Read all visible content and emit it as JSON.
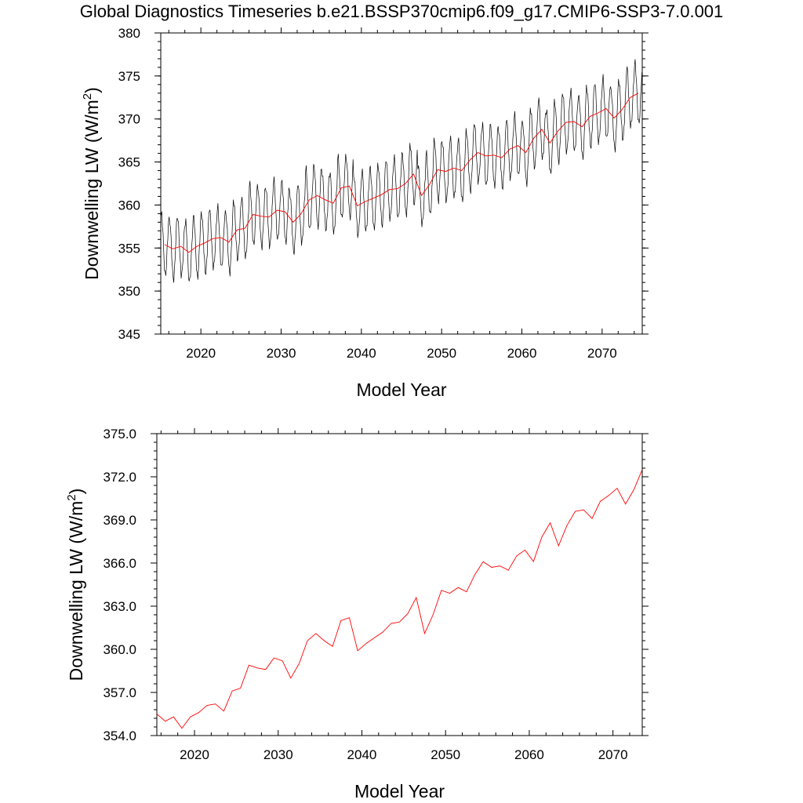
{
  "title": "Global Diagnostics Timeseries b.e21.BSSP370cmip6.f09_g17.CMIP6-SSP3-7.0.001",
  "colors": {
    "monthly": "#000000",
    "annual": "#ff0000"
  },
  "chart_data": [
    {
      "type": "line",
      "xlabel": "Model Year",
      "ylabel": "Downwelling LW (W/m",
      "ylabel_sup": "2",
      "ylabel_close": ")",
      "xlim": [
        2015,
        2075
      ],
      "ylim": [
        345,
        380
      ],
      "xticks": [
        2020,
        2030,
        2040,
        2050,
        2060,
        2070
      ],
      "xtick_labels": [
        "2020",
        "2030",
        "2040",
        "2050",
        "2060",
        "2070"
      ],
      "yticks": [
        345,
        350,
        355,
        360,
        365,
        370,
        375,
        380
      ],
      "ytick_labels": [
        "345",
        "350",
        "355",
        "360",
        "365",
        "370",
        "375",
        "380"
      ],
      "series": [
        {
          "style": "monthly",
          "seasonal_amplitude": 3.5,
          "x": [
            2015.5,
            2016.5,
            2017.5,
            2018.5,
            2019.5,
            2020.5,
            2021.5,
            2022.5,
            2023.5,
            2024.5,
            2025.5,
            2026.5,
            2027.5,
            2028.5,
            2029.5,
            2030.5,
            2031.5,
            2032.5,
            2033.5,
            2034.5,
            2035.5,
            2036.5,
            2037.5,
            2038.5,
            2039.5,
            2040.5,
            2041.5,
            2042.5,
            2043.5,
            2044.5,
            2045.5,
            2046.5,
            2047.5,
            2048.5,
            2049.5,
            2050.5,
            2051.5,
            2052.5,
            2053.5,
            2054.5,
            2055.5,
            2056.5,
            2057.5,
            2058.5,
            2059.5,
            2060.5,
            2061.5,
            2062.5,
            2063.5,
            2064.5,
            2065.5,
            2066.5,
            2067.5,
            2068.5,
            2069.5,
            2070.5,
            2071.5,
            2072.5,
            2073.5,
            2074.5
          ],
          "y": [
            355.4,
            354.9,
            355.2,
            354.5,
            355.2,
            355.6,
            356.1,
            356.2,
            355.7,
            357.1,
            357.3,
            358.9,
            358.7,
            358.6,
            359.4,
            359.2,
            358.0,
            359.0,
            360.6,
            361.1,
            360.6,
            360.2,
            362.0,
            362.2,
            359.9,
            360.4,
            360.8,
            361.2,
            361.8,
            361.9,
            362.5,
            363.6,
            361.1,
            362.4,
            364.1,
            363.9,
            364.3,
            364.0,
            365.2,
            366.1,
            365.7,
            365.8,
            365.5,
            366.5,
            366.9,
            366.1,
            367.8,
            368.8,
            367.2,
            368.6,
            369.6,
            369.7,
            369.1,
            370.3,
            370.7,
            371.2,
            370.1,
            371.1,
            372.5,
            373.0
          ]
        },
        {
          "style": "annual",
          "x": [
            2015.5,
            2016.5,
            2017.5,
            2018.5,
            2019.5,
            2020.5,
            2021.5,
            2022.5,
            2023.5,
            2024.5,
            2025.5,
            2026.5,
            2027.5,
            2028.5,
            2029.5,
            2030.5,
            2031.5,
            2032.5,
            2033.5,
            2034.5,
            2035.5,
            2036.5,
            2037.5,
            2038.5,
            2039.5,
            2040.5,
            2041.5,
            2042.5,
            2043.5,
            2044.5,
            2045.5,
            2046.5,
            2047.5,
            2048.5,
            2049.5,
            2050.5,
            2051.5,
            2052.5,
            2053.5,
            2054.5,
            2055.5,
            2056.5,
            2057.5,
            2058.5,
            2059.5,
            2060.5,
            2061.5,
            2062.5,
            2063.5,
            2064.5,
            2065.5,
            2066.5,
            2067.5,
            2068.5,
            2069.5,
            2070.5,
            2071.5,
            2072.5,
            2073.5,
            2074.5
          ],
          "y": [
            355.4,
            354.9,
            355.2,
            354.5,
            355.2,
            355.6,
            356.1,
            356.2,
            355.7,
            357.1,
            357.3,
            358.9,
            358.7,
            358.6,
            359.4,
            359.2,
            358.0,
            359.0,
            360.6,
            361.1,
            360.6,
            360.2,
            362.0,
            362.2,
            359.9,
            360.4,
            360.8,
            361.2,
            361.8,
            361.9,
            362.5,
            363.6,
            361.1,
            362.4,
            364.1,
            363.9,
            364.3,
            364.0,
            365.2,
            366.1,
            365.7,
            365.8,
            365.5,
            366.5,
            366.9,
            366.1,
            367.8,
            368.8,
            367.2,
            368.6,
            369.6,
            369.7,
            369.1,
            370.3,
            370.7,
            371.2,
            370.1,
            371.1,
            372.5,
            373.0
          ]
        }
      ]
    },
    {
      "type": "line",
      "xlabel": "Model Year",
      "ylabel": "Downwelling LW (W/m",
      "ylabel_sup": "2",
      "ylabel_close": ")",
      "xlim": [
        2015.5,
        2073.5
      ],
      "ylim": [
        354,
        375
      ],
      "xticks": [
        2020,
        2030,
        2040,
        2050,
        2060,
        2070
      ],
      "xtick_labels": [
        "2020",
        "2030",
        "2040",
        "2050",
        "2060",
        "2070"
      ],
      "yticks": [
        354,
        357,
        360,
        363,
        366,
        369,
        372,
        375
      ],
      "ytick_labels": [
        "354.0",
        "357.0",
        "360.0",
        "363.0",
        "366.0",
        "369.0",
        "372.0",
        "375.0"
      ],
      "series": [
        {
          "style": "annual",
          "x": [
            2015.5,
            2016.5,
            2017.5,
            2018.5,
            2019.5,
            2020.5,
            2021.5,
            2022.5,
            2023.5,
            2024.5,
            2025.5,
            2026.5,
            2027.5,
            2028.5,
            2029.5,
            2030.5,
            2031.5,
            2032.5,
            2033.5,
            2034.5,
            2035.5,
            2036.5,
            2037.5,
            2038.5,
            2039.5,
            2040.5,
            2041.5,
            2042.5,
            2043.5,
            2044.5,
            2045.5,
            2046.5,
            2047.5,
            2048.5,
            2049.5,
            2050.5,
            2051.5,
            2052.5,
            2053.5,
            2054.5,
            2055.5,
            2056.5,
            2057.5,
            2058.5,
            2059.5,
            2060.5,
            2061.5,
            2062.5,
            2063.5,
            2064.5,
            2065.5,
            2066.5,
            2067.5,
            2068.5,
            2069.5,
            2070.5,
            2071.5,
            2072.5,
            2073.5
          ],
          "y": [
            355.5,
            355.0,
            355.3,
            354.5,
            355.3,
            355.6,
            356.1,
            356.2,
            355.7,
            357.1,
            357.3,
            358.9,
            358.7,
            358.6,
            359.4,
            359.2,
            358.0,
            359.0,
            360.6,
            361.1,
            360.6,
            360.2,
            362.0,
            362.2,
            359.9,
            360.4,
            360.8,
            361.2,
            361.8,
            361.9,
            362.5,
            363.6,
            361.1,
            362.4,
            364.1,
            363.9,
            364.3,
            364.0,
            365.2,
            366.1,
            365.7,
            365.8,
            365.5,
            366.5,
            366.9,
            366.1,
            367.8,
            368.8,
            367.2,
            368.6,
            369.6,
            369.7,
            369.1,
            370.3,
            370.7,
            371.2,
            370.1,
            371.1,
            372.5
          ]
        }
      ]
    }
  ]
}
